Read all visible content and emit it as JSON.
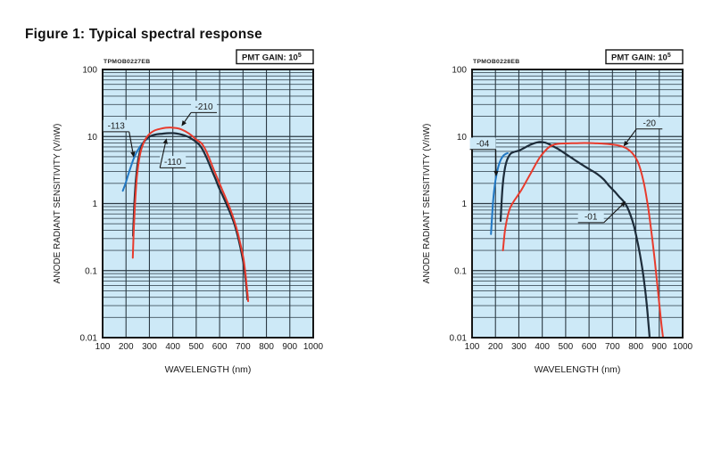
{
  "page": {
    "title": "Figure 1: Typical spectral response"
  },
  "colors": {
    "page_bg": "#ffffff",
    "plot_bg": "#cde9f7",
    "grid_minor": "#41525e",
    "grid_major": "#2c3a44",
    "frame": "#151515",
    "text": "#1a1a1a",
    "blue_curve": "#2178c4",
    "red_curve": "#e83b2d",
    "dark_curve": "#1d2c3a",
    "gain_box_bg": "#ffffff"
  },
  "chart_data": [
    {
      "type": "line",
      "id_label": "TPMOB0227EB",
      "gain_label_prefix": "PMT GAIN: 10",
      "gain_label_exp": "5",
      "xlabel": "WAVELENGTH (nm)",
      "ylabel": "ANODE RADIANT SENSITIVITY (V/nW)",
      "x_scale": "linear",
      "y_scale": "log",
      "xlim": [
        100,
        1000
      ],
      "ylim": [
        0.01,
        100
      ],
      "x_ticks": [
        "100",
        "200",
        "300",
        "400",
        "500",
        "600",
        "700",
        "800",
        "900",
        "1000"
      ],
      "y_ticks": [
        "100",
        "10",
        "1",
        "0.1",
        "0.01"
      ],
      "grid": true,
      "series": [
        {
          "name": "-113",
          "color": "#2178c4",
          "width": 2.0,
          "points": [
            [
              186,
              1.55
            ],
            [
              198,
              2.0
            ],
            [
              208,
              2.6
            ],
            [
              220,
              3.5
            ],
            [
              232,
              4.6
            ],
            [
              245,
              5.8
            ],
            [
              258,
              6.9
            ],
            [
              272,
              8.0
            ],
            [
              285,
              8.9
            ],
            [
              298,
              9.7
            ]
          ]
        },
        {
          "name": "-110",
          "color": "#1d2c3a",
          "width": 2.2,
          "points": [
            [
              230,
              0.33
            ],
            [
              233,
              0.62
            ],
            [
              237,
              1.2
            ],
            [
              242,
              2.2
            ],
            [
              249,
              3.8
            ],
            [
              257,
              5.5
            ],
            [
              267,
              7.2
            ],
            [
              280,
              8.7
            ],
            [
              295,
              9.7
            ],
            [
              312,
              10.4
            ],
            [
              332,
              10.8
            ],
            [
              355,
              11.0
            ],
            [
              380,
              11.2
            ],
            [
              405,
              11.2
            ],
            [
              428,
              10.9
            ],
            [
              450,
              10.4
            ],
            [
              470,
              9.7
            ],
            [
              488,
              8.9
            ],
            [
              503,
              8.1
            ],
            [
              515,
              7.4
            ],
            [
              527,
              6.4
            ],
            [
              540,
              5.2
            ],
            [
              553,
              4.1
            ],
            [
              567,
              3.1
            ],
            [
              582,
              2.35
            ],
            [
              598,
              1.7
            ],
            [
              615,
              1.27
            ],
            [
              632,
              0.93
            ],
            [
              650,
              0.66
            ],
            [
              666,
              0.46
            ],
            [
              681,
              0.29
            ],
            [
              694,
              0.18
            ],
            [
              704,
              0.115
            ],
            [
              712,
              0.068
            ],
            [
              717,
              0.046
            ],
            [
              719,
              0.037
            ]
          ]
        },
        {
          "name": "-210",
          "color": "#e83b2d",
          "width": 2.0,
          "points": [
            [
              229,
              0.155
            ],
            [
              232,
              0.32
            ],
            [
              236,
              0.68
            ],
            [
              241,
              1.4
            ],
            [
              247,
              2.6
            ],
            [
              255,
              4.3
            ],
            [
              264,
              6.2
            ],
            [
              275,
              8.0
            ],
            [
              288,
              9.7
            ],
            [
              303,
              11.1
            ],
            [
              322,
              12.3
            ],
            [
              345,
              13.0
            ],
            [
              370,
              13.5
            ],
            [
              395,
              13.6
            ],
            [
              418,
              13.3
            ],
            [
              438,
              12.7
            ],
            [
              456,
              11.8
            ],
            [
              472,
              10.9
            ],
            [
              487,
              9.9
            ],
            [
              500,
              9.0
            ],
            [
              511,
              8.5
            ],
            [
              521,
              8.0
            ],
            [
              531,
              7.2
            ],
            [
              543,
              6.0
            ],
            [
              555,
              4.8
            ],
            [
              568,
              3.7
            ],
            [
              582,
              2.8
            ],
            [
              597,
              2.1
            ],
            [
              613,
              1.55
            ],
            [
              630,
              1.12
            ],
            [
              647,
              0.8
            ],
            [
              663,
              0.55
            ],
            [
              678,
              0.36
            ],
            [
              691,
              0.23
            ],
            [
              702,
              0.15
            ],
            [
              710,
              0.092
            ],
            [
              716,
              0.058
            ],
            [
              720,
              0.042
            ],
            [
              722,
              0.035
            ]
          ]
        }
      ],
      "annotations": [
        {
          "text": "-113",
          "label_at": [
            158,
            14.5
          ],
          "tip": [
            233,
            4.9
          ]
        },
        {
          "text": "-210",
          "label_at": [
            533,
            28.0
          ],
          "tip": [
            437,
            14.3
          ]
        },
        {
          "text": "-110",
          "label_at": [
            400,
            4.2
          ],
          "tip": [
            373,
            9.4
          ]
        }
      ]
    },
    {
      "type": "line",
      "id_label": "TPMOB0228EB",
      "gain_label_prefix": "PMT GAIN: 10",
      "gain_label_exp": "5",
      "xlabel": "WAVELENGTH (nm)",
      "ylabel": "ANODE RADIANT SENSITIVITY (V/nW)",
      "x_scale": "linear",
      "y_scale": "log",
      "xlim": [
        100,
        1000
      ],
      "ylim": [
        0.01,
        100
      ],
      "x_ticks": [
        "100",
        "200",
        "300",
        "400",
        "500",
        "600",
        "700",
        "800",
        "900",
        "1000"
      ],
      "y_ticks": [
        "100",
        "10",
        "1",
        "0.1",
        "0.01"
      ],
      "grid": true,
      "series": [
        {
          "name": "-04",
          "color": "#2178c4",
          "width": 2.0,
          "points": [
            [
              181,
              0.35
            ],
            [
              186,
              0.7
            ],
            [
              192,
              1.3
            ],
            [
              200,
              2.2
            ],
            [
              209,
              3.2
            ],
            [
              219,
              4.2
            ],
            [
              230,
              5.0
            ],
            [
              240,
              5.4
            ],
            [
              252,
              5.65
            ]
          ]
        },
        {
          "name": "-01",
          "color": "#1d2c3a",
          "width": 2.2,
          "points": [
            [
              222,
              0.55
            ],
            [
              226,
              1.0
            ],
            [
              231,
              1.9
            ],
            [
              238,
              3.0
            ],
            [
              246,
              4.1
            ],
            [
              256,
              5.0
            ],
            [
              266,
              5.6
            ],
            [
              280,
              5.9
            ],
            [
              296,
              6.1
            ],
            [
              314,
              6.5
            ],
            [
              334,
              7.1
            ],
            [
              355,
              7.7
            ],
            [
              375,
              8.1
            ],
            [
              392,
              8.3
            ],
            [
              412,
              8.1
            ],
            [
              432,
              7.6
            ],
            [
              455,
              6.9
            ],
            [
              478,
              6.2
            ],
            [
              500,
              5.5
            ],
            [
              522,
              4.9
            ],
            [
              548,
              4.25
            ],
            [
              575,
              3.7
            ],
            [
              605,
              3.2
            ],
            [
              635,
              2.75
            ],
            [
              662,
              2.3
            ],
            [
              688,
              1.8
            ],
            [
              710,
              1.5
            ],
            [
              730,
              1.25
            ],
            [
              748,
              1.07
            ],
            [
              762,
              0.9
            ],
            [
              778,
              0.66
            ],
            [
              792,
              0.46
            ],
            [
              806,
              0.28
            ],
            [
              818,
              0.17
            ],
            [
              828,
              0.105
            ],
            [
              838,
              0.058
            ],
            [
              847,
              0.03
            ],
            [
              854,
              0.016
            ],
            [
              859,
              0.01
            ]
          ]
        },
        {
          "name": "-20",
          "color": "#e83b2d",
          "width": 2.0,
          "points": [
            [
              232,
              0.2
            ],
            [
              240,
              0.38
            ],
            [
              250,
              0.6
            ],
            [
              262,
              0.85
            ],
            [
              276,
              1.05
            ],
            [
              294,
              1.3
            ],
            [
              312,
              1.62
            ],
            [
              330,
              2.1
            ],
            [
              350,
              2.8
            ],
            [
              370,
              3.75
            ],
            [
              390,
              4.9
            ],
            [
              410,
              6.0
            ],
            [
              428,
              6.9
            ],
            [
              446,
              7.5
            ],
            [
              470,
              7.8
            ],
            [
              500,
              7.9
            ],
            [
              540,
              7.95
            ],
            [
              580,
              8.0
            ],
            [
              620,
              7.95
            ],
            [
              660,
              7.85
            ],
            [
              700,
              7.6
            ],
            [
              730,
              7.3
            ],
            [
              755,
              6.8
            ],
            [
              775,
              6.1
            ],
            [
              793,
              5.2
            ],
            [
              808,
              4.2
            ],
            [
              820,
              3.2
            ],
            [
              832,
              2.2
            ],
            [
              843,
              1.4
            ],
            [
              853,
              0.85
            ],
            [
              862,
              0.5
            ],
            [
              871,
              0.28
            ],
            [
              881,
              0.14
            ],
            [
              891,
              0.065
            ],
            [
              901,
              0.03
            ],
            [
              910,
              0.015
            ],
            [
              916,
              0.01
            ]
          ]
        }
      ],
      "annotations": [
        {
          "text": "-04",
          "label_at": [
            146,
            7.9
          ],
          "tip": [
            203,
            2.55
          ]
        },
        {
          "text": "-20",
          "label_at": [
            858,
            16.0
          ],
          "tip": [
            747,
            7.1
          ]
        },
        {
          "text": "-01",
          "label_at": [
            608,
            0.64
          ],
          "tip": [
            757,
            1.08
          ]
        }
      ]
    }
  ]
}
